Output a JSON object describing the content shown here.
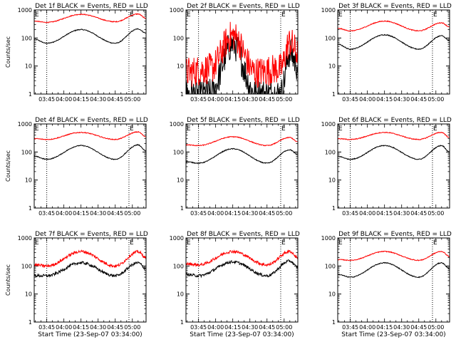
{
  "window_title": "",
  "colors": {
    "events": "#000000",
    "lld": "#ff0000",
    "axis": "#000000",
    "background": "#ffffff"
  },
  "chart_data": [
    {
      "type": "line",
      "title": "Det 1f BLACK = Events, RED = LLD",
      "ylabel": "Counts/sec",
      "xlabel": "",
      "yscale": "log",
      "ylim": [
        1,
        1000
      ],
      "xlim": [
        "03:34",
        "05:12"
      ],
      "xtick_labels": [
        "03:45",
        "04:00",
        "04:15",
        "04:30",
        "04:45",
        "05:00"
      ],
      "ytick_labels": [
        "1",
        "10",
        "100",
        "1000"
      ],
      "markers": [
        "E",
        "E"
      ],
      "marker_times": [
        "03:34",
        "04:57"
      ],
      "vlines": [
        "03:45",
        "04:57"
      ],
      "series": [
        {
          "shape": "wave",
          "noise": "low",
          "x": [
            "03:34",
            "03:45",
            "04:15",
            "04:45",
            "05:05",
            "05:12"
          ],
          "values": [
            90,
            65,
            200,
            65,
            210,
            150
          ]
        },
        {
          "shape": "wave",
          "noise": "low",
          "x": [
            "03:34",
            "03:45",
            "04:15",
            "04:45",
            "05:05",
            "05:12"
          ],
          "values": [
            400,
            360,
            700,
            380,
            720,
            500
          ]
        }
      ]
    },
    {
      "type": "line",
      "title": "Det 2f BLACK = Events, RED = LLD",
      "ylabel": "",
      "xlabel": "",
      "yscale": "log",
      "ylim": [
        1,
        1000
      ],
      "xlim": [
        "03:34",
        "05:12"
      ],
      "xtick_labels": [
        "03:45",
        "04:00",
        "04:15",
        "04:30",
        "04:45",
        "05:00"
      ],
      "ytick_labels": [
        "1",
        "10",
        "100",
        "1000"
      ],
      "markers": [
        "E",
        "E"
      ],
      "marker_times": [
        "03:34",
        "04:57"
      ],
      "vlines": [
        "03:45",
        "04:57"
      ],
      "series": [
        {
          "shape": "bump",
          "noise": "high",
          "x": [
            "03:34",
            "03:55",
            "04:15",
            "04:35",
            "04:57",
            "05:05",
            "05:12"
          ],
          "values": [
            1,
            1,
            60,
            1,
            1,
            30,
            10
          ]
        },
        {
          "shape": "bump",
          "noise": "high",
          "x": [
            "03:34",
            "03:55",
            "04:15",
            "04:35",
            "04:57",
            "05:05",
            "05:12"
          ],
          "values": [
            6,
            8,
            120,
            6,
            8,
            70,
            30
          ]
        }
      ]
    },
    {
      "type": "line",
      "title": "Det 3f BLACK = Events, RED = LLD",
      "ylabel": "",
      "xlabel": "",
      "yscale": "log",
      "ylim": [
        1,
        1000
      ],
      "xlim": [
        "03:34",
        "05:12"
      ],
      "xtick_labels": [
        "03:45",
        "04:00",
        "04:15",
        "04:30",
        "04:45",
        "05:00"
      ],
      "ytick_labels": [
        "1",
        "10",
        "100",
        "1000"
      ],
      "markers": [
        "E",
        "E"
      ],
      "marker_times": [
        "03:34",
        "04:57"
      ],
      "vlines": [
        "03:45",
        "04:57"
      ],
      "series": [
        {
          "shape": "wave",
          "noise": "low",
          "x": [
            "03:34",
            "03:45",
            "04:15",
            "04:45",
            "05:05",
            "05:12"
          ],
          "values": [
            60,
            40,
            130,
            40,
            120,
            80
          ]
        },
        {
          "shape": "wave",
          "noise": "low",
          "x": [
            "03:34",
            "03:45",
            "04:15",
            "04:45",
            "05:05",
            "05:12"
          ],
          "values": [
            220,
            180,
            400,
            180,
            350,
            250
          ]
        }
      ]
    },
    {
      "type": "line",
      "title": "Det 4f BLACK = Events, RED = LLD",
      "ylabel": "Counts/sec",
      "xlabel": "",
      "yscale": "log",
      "ylim": [
        1,
        1000
      ],
      "xlim": [
        "03:34",
        "05:12"
      ],
      "xtick_labels": [
        "03:45",
        "04:00",
        "04:15",
        "04:30",
        "04:45",
        "05:00"
      ],
      "ytick_labels": [
        "1",
        "10",
        "100",
        "1000"
      ],
      "markers": [
        "E",
        "E"
      ],
      "marker_times": [
        "03:34",
        "04:57"
      ],
      "vlines": [
        "03:45",
        "04:57"
      ],
      "series": [
        {
          "shape": "wave",
          "noise": "low",
          "x": [
            "03:34",
            "03:45",
            "04:15",
            "04:45",
            "05:05",
            "05:12"
          ],
          "values": [
            70,
            55,
            170,
            55,
            180,
            110
          ]
        },
        {
          "shape": "wave",
          "noise": "low",
          "x": [
            "03:34",
            "03:45",
            "04:15",
            "04:45",
            "05:05",
            "05:12"
          ],
          "values": [
            300,
            280,
            500,
            280,
            520,
            350
          ]
        }
      ]
    },
    {
      "type": "line",
      "title": "Det 5f BLACK = Events, RED = LLD",
      "ylabel": "",
      "xlabel": "",
      "yscale": "log",
      "ylim": [
        1,
        1000
      ],
      "xlim": [
        "03:34",
        "05:12"
      ],
      "xtick_labels": [
        "03:45",
        "04:00",
        "04:15",
        "04:30",
        "04:45",
        "05:00"
      ],
      "ytick_labels": [
        "1",
        "10",
        "100",
        "1000"
      ],
      "markers": [
        "E",
        "E"
      ],
      "marker_times": [
        "03:34",
        "04:57"
      ],
      "vlines": [
        "03:45",
        "04:57"
      ],
      "series": [
        {
          "shape": "wave",
          "noise": "low",
          "x": [
            "03:34",
            "03:45",
            "04:15",
            "04:45",
            "05:05",
            "05:12"
          ],
          "values": [
            45,
            40,
            130,
            40,
            120,
            80
          ]
        },
        {
          "shape": "wave",
          "noise": "low",
          "x": [
            "03:34",
            "03:45",
            "04:15",
            "04:45",
            "05:05",
            "05:12"
          ],
          "values": [
            180,
            170,
            350,
            170,
            330,
            230
          ]
        }
      ]
    },
    {
      "type": "line",
      "title": "Det 6f BLACK = Events, RED = LLD",
      "ylabel": "",
      "xlabel": "",
      "yscale": "log",
      "ylim": [
        1,
        1000
      ],
      "xlim": [
        "03:34",
        "05:12"
      ],
      "xtick_labels": [
        "03:45",
        "04:00",
        "04:15",
        "04:30",
        "04:45",
        "05:00"
      ],
      "ytick_labels": [
        "1",
        "10",
        "100",
        "1000"
      ],
      "markers": [
        "E",
        "E"
      ],
      "marker_times": [
        "03:34",
        "04:57"
      ],
      "vlines": [
        "03:45",
        "04:57"
      ],
      "series": [
        {
          "shape": "wave",
          "noise": "low",
          "x": [
            "03:34",
            "03:45",
            "04:15",
            "04:45",
            "05:05",
            "05:12"
          ],
          "values": [
            70,
            55,
            170,
            55,
            170,
            100
          ]
        },
        {
          "shape": "wave",
          "noise": "low",
          "x": [
            "03:34",
            "03:45",
            "04:15",
            "04:45",
            "05:05",
            "05:12"
          ],
          "values": [
            300,
            280,
            500,
            280,
            500,
            330
          ]
        }
      ]
    },
    {
      "type": "line",
      "title": "Det 7f BLACK = Events, RED = LLD",
      "ylabel": "Counts/sec",
      "xlabel": "Start Time (23-Sep-07 03:34:00)",
      "yscale": "log",
      "ylim": [
        1,
        1000
      ],
      "xlim": [
        "03:34",
        "05:12"
      ],
      "xtick_labels": [
        "03:45",
        "04:00",
        "04:15",
        "04:30",
        "04:45",
        "05:00"
      ],
      "ytick_labels": [
        "1",
        "10",
        "100",
        "1000"
      ],
      "markers": [
        "E",
        "E"
      ],
      "marker_times": [
        "03:34",
        "04:57"
      ],
      "vlines": [
        "03:45",
        "04:57"
      ],
      "series": [
        {
          "shape": "wave",
          "noise": "medium",
          "x": [
            "03:34",
            "03:45",
            "04:15",
            "04:45",
            "05:05",
            "05:12"
          ],
          "values": [
            45,
            45,
            130,
            45,
            130,
            80
          ]
        },
        {
          "shape": "wave",
          "noise": "medium",
          "x": [
            "03:34",
            "03:45",
            "04:15",
            "04:45",
            "05:05",
            "05:12"
          ],
          "values": [
            110,
            100,
            330,
            100,
            320,
            200
          ]
        }
      ]
    },
    {
      "type": "line",
      "title": "Det 8f BLACK = Events, RED = LLD",
      "ylabel": "",
      "xlabel": "Start Time (23-Sep-07 03:34:00)",
      "yscale": "log",
      "ylim": [
        1,
        1000
      ],
      "xlim": [
        "03:34",
        "05:12"
      ],
      "xtick_labels": [
        "03:45",
        "04:00",
        "04:15",
        "04:30",
        "04:45",
        "05:00"
      ],
      "ytick_labels": [
        "1",
        "10",
        "100",
        "1000"
      ],
      "markers": [
        "E",
        "E"
      ],
      "marker_times": [
        "03:34",
        "04:57"
      ],
      "vlines": [
        "03:45",
        "04:57"
      ],
      "series": [
        {
          "shape": "wave",
          "noise": "medium",
          "x": [
            "03:34",
            "03:45",
            "04:15",
            "04:45",
            "05:05",
            "05:12"
          ],
          "values": [
            50,
            45,
            140,
            45,
            150,
            90
          ]
        },
        {
          "shape": "wave",
          "noise": "medium",
          "x": [
            "03:34",
            "03:45",
            "04:15",
            "04:45",
            "05:05",
            "05:12"
          ],
          "values": [
            120,
            110,
            330,
            110,
            330,
            200
          ]
        }
      ]
    },
    {
      "type": "line",
      "title": "Det 9f BLACK = Events, RED = LLD",
      "ylabel": "",
      "xlabel": "Start Time (23-Sep-07 03:34:00)",
      "yscale": "log",
      "ylim": [
        1,
        1000
      ],
      "xlim": [
        "03:34",
        "05:12"
      ],
      "xtick_labels": [
        "03:45",
        "04:00",
        "04:15",
        "04:30",
        "04:45",
        "05:00"
      ],
      "ytick_labels": [
        "1",
        "10",
        "100",
        "1000"
      ],
      "markers": [
        "E",
        "E"
      ],
      "marker_times": [
        "03:34",
        "04:57"
      ],
      "vlines": [
        "03:45",
        "04:57"
      ],
      "series": [
        {
          "shape": "wave",
          "noise": "low",
          "x": [
            "03:34",
            "03:45",
            "04:15",
            "04:45",
            "05:05",
            "05:12"
          ],
          "values": [
            50,
            40,
            130,
            40,
            130,
            80
          ]
        },
        {
          "shape": "wave",
          "noise": "low",
          "x": [
            "03:34",
            "03:45",
            "04:15",
            "04:45",
            "05:05",
            "05:12"
          ],
          "values": [
            170,
            160,
            330,
            160,
            330,
            220
          ]
        }
      ]
    }
  ]
}
